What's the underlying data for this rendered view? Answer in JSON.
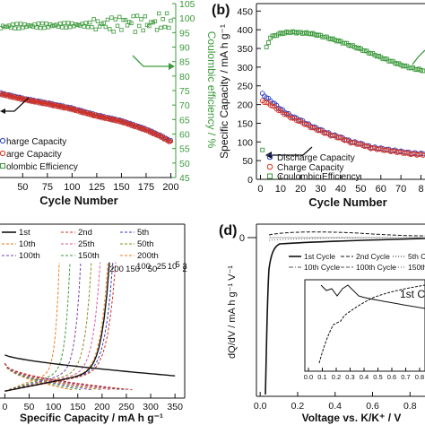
{
  "figure": {
    "background": "#ffffff"
  },
  "colors": {
    "blue": "#2b3fc2",
    "red": "#d8321f",
    "green": "#3c9a3c",
    "black": "#111111",
    "orange": "#f07a1a"
  },
  "chart_data": [
    {
      "panel": "a",
      "type": "scatter",
      "xlabel": "Cycle Number",
      "ylabel_right": "Coulombic efficiency / %",
      "x_ticks": [
        "50",
        "75",
        "100",
        "125",
        "150",
        "175",
        "200"
      ],
      "right_ticks": [
        "45",
        "50",
        "55",
        "60",
        "65",
        "70",
        "75",
        "80",
        "85",
        "90",
        "95",
        "100",
        "105"
      ],
      "xlim": [
        27,
        205
      ],
      "ylim_right": [
        45,
        105
      ],
      "legend_entries": [
        "harge Capacity",
        "arge Capacity",
        "olombic Efficiency"
      ],
      "series": [
        {
          "name": "harge Capacity",
          "color": "blue",
          "x": [
            28,
            50,
            75,
            100,
            125,
            150,
            175,
            190,
            200
          ],
          "y_right": [
            74,
            72.2,
            70.6,
            68.8,
            66.4,
            64.5,
            61.6,
            59.3,
            57.5
          ]
        },
        {
          "name": "arge Capacity",
          "color": "red",
          "x": [
            28,
            50,
            75,
            100,
            125,
            150,
            175,
            190,
            200
          ],
          "y_right": [
            73.8,
            72,
            70.4,
            68.6,
            66.2,
            64.3,
            61.4,
            59.1,
            57.2
          ]
        },
        {
          "name": "olombic Efficiency",
          "color": "green",
          "x": [
            28,
            50,
            75,
            100,
            125,
            140,
            150,
            160,
            170,
            180,
            190,
            200
          ],
          "y_right": [
            97,
            97.3,
            97.4,
            97.6,
            97.7,
            98.1,
            98.4,
            98.6,
            98.3,
            98.1,
            98.6,
            98.9
          ]
        }
      ]
    },
    {
      "panel": "b",
      "type": "scatter",
      "xlabel": "Cycle Number",
      "ylabel": "Specific Capacity / mA h g⁻¹",
      "x_ticks": [
        "0",
        "10",
        "20",
        "30",
        "40",
        "50",
        "60",
        "70",
        "8"
      ],
      "y_ticks": [
        "0",
        "50",
        "100",
        "150",
        "200",
        "250",
        "300",
        "350",
        "400",
        "450"
      ],
      "xlim": [
        -2,
        82
      ],
      "ylim": [
        0,
        470
      ],
      "legend_entries": [
        "Discharge Capacity",
        "Charge Capacity",
        "Coulombic Efficiency"
      ],
      "series": [
        {
          "name": "Discharge Capacity",
          "color": "blue",
          "x": [
            1,
            5,
            10,
            15,
            20,
            25,
            30,
            35,
            40,
            45,
            50,
            55,
            60,
            65,
            70,
            75,
            80
          ],
          "y": [
            228,
            210,
            188,
            170,
            158,
            143,
            132,
            120,
            112,
            101,
            95,
            86,
            82,
            78,
            74,
            70,
            68
          ]
        },
        {
          "name": "Charge Capacity",
          "color": "red",
          "x": [
            1,
            5,
            10,
            15,
            20,
            25,
            30,
            35,
            40,
            45,
            50,
            55,
            60,
            65,
            70,
            75,
            80
          ],
          "y": [
            210,
            200,
            182,
            166,
            154,
            140,
            129,
            118,
            110,
            99,
            93,
            84,
            80,
            76,
            72,
            68,
            66
          ]
        },
        {
          "name": "Coulombic Efficiency",
          "color": "green",
          "x": [
            1,
            3,
            5,
            10,
            15,
            20,
            25,
            30,
            35,
            40,
            45,
            50,
            55,
            60,
            65,
            70,
            75,
            80
          ],
          "y": [
            80,
            352,
            380,
            390,
            394,
            392,
            390,
            384,
            376,
            368,
            358,
            348,
            337,
            326,
            316,
            306,
            298,
            292
          ]
        }
      ]
    },
    {
      "panel": "c",
      "type": "line",
      "xlabel": "Specific Capacity / mA h g⁻¹",
      "x_ticks": [
        "0",
        "50",
        "100",
        "150",
        "200",
        "250",
        "300",
        "350"
      ],
      "xlim": [
        -10,
        370
      ],
      "ylim": [
        0,
        2.5
      ],
      "legend_entries": [
        "1st",
        "2nd",
        "5th",
        "10th",
        "25th",
        "50th",
        "100th",
        "150th",
        "200th"
      ],
      "curve_labels": [
        "200",
        "150",
        "100",
        "50",
        "25",
        "10",
        "5",
        "3",
        "2"
      ],
      "series": [
        {
          "name": "1st",
          "color": "black",
          "discharge_end": 350,
          "charge_end": 215
        },
        {
          "name": "2nd",
          "color": "red",
          "discharge_end": 262,
          "charge_end": 228
        },
        {
          "name": "5th",
          "color": "blue",
          "discharge_end": 250,
          "charge_end": 222
        },
        {
          "name": "10th",
          "color": "orange",
          "discharge_end": 238,
          "charge_end": 212
        },
        {
          "name": "25th",
          "color": "pink",
          "discharge_end": 220,
          "charge_end": 196
        },
        {
          "name": "50th",
          "color": "olive",
          "discharge_end": 200,
          "charge_end": 178
        },
        {
          "name": "100th",
          "color": "purple",
          "discharge_end": 178,
          "charge_end": 156
        },
        {
          "name": "150th",
          "color": "green",
          "discharge_end": 156,
          "charge_end": 134
        },
        {
          "name": "200th",
          "color": "orange",
          "discharge_end": 138,
          "charge_end": 112
        }
      ]
    },
    {
      "panel": "d",
      "type": "line",
      "xlabel": "Voltage vs. K/K⁺ / V",
      "ylabel": "dQ/dV / mA h g⁻¹ V⁻¹",
      "x_ticks": [
        "0.0",
        "0.2",
        "0.4",
        "0.6",
        "0.8"
      ],
      "main_y_ticks": [
        "0"
      ],
      "inset_x_ticks": [
        "0.0",
        "0.1",
        "0.2",
        "0.3",
        "0.4",
        "0.5",
        "0.6",
        "0.7",
        "0.8"
      ],
      "inset_label": "1st C",
      "legend_entries": [
        "1st Cycle",
        "2nd Cycle",
        "5th C",
        "10th Cycle",
        "100th Cycle",
        "150th"
      ],
      "series": [
        {
          "name": "1st Cycle",
          "color": "black",
          "style": "solid"
        },
        {
          "name": "2nd Cycle",
          "color": "black",
          "style": "dashed"
        },
        {
          "name": "5th C",
          "color": "black",
          "style": "dotted"
        },
        {
          "name": "10th Cycle",
          "color": "gray",
          "style": "dash-dot"
        },
        {
          "name": "100th Cycle",
          "color": "gray",
          "style": "dashed"
        },
        {
          "name": "150th",
          "color": "gray",
          "style": "dotted"
        }
      ]
    }
  ],
  "panels": {
    "b": {
      "label": "(b)"
    },
    "d": {
      "label": "(d)"
    }
  }
}
